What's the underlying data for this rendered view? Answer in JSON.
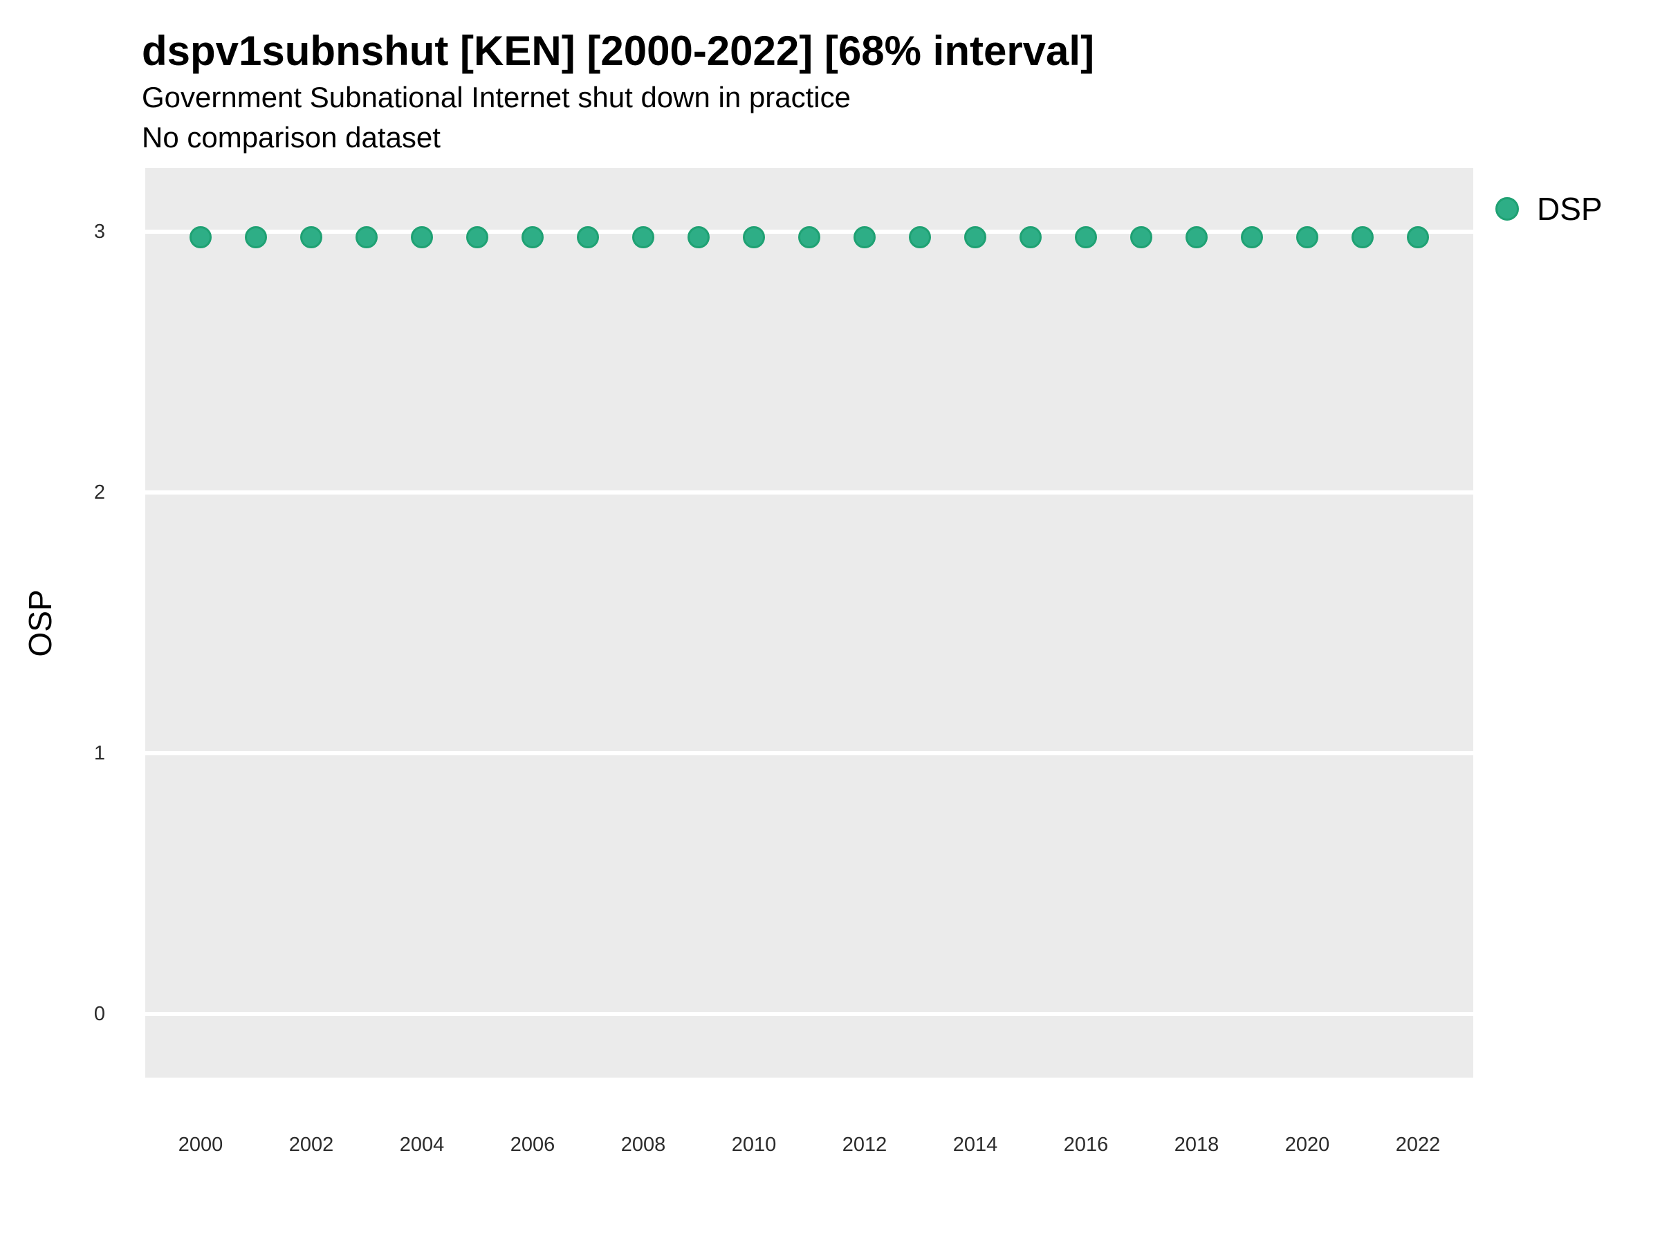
{
  "header": {
    "title": "dspv1subnshut [KEN] [2000-2022] [68% interval]",
    "subtitle": "Government Subnational Internet shut down in practice",
    "comparison_note": "No comparison dataset"
  },
  "legend": {
    "items": [
      {
        "label": "DSP",
        "color": "#2EAE86",
        "border_color": "#1FA173"
      }
    ]
  },
  "chart_data": {
    "type": "scatter",
    "title": "dspv1subnshut [KEN] [2000-2022] [68% interval]",
    "subtitle": "Government Subnational Internet shut down in practice",
    "note": "No comparison dataset",
    "xlabel": "",
    "ylabel": "OSP",
    "x": [
      2000,
      2001,
      2002,
      2003,
      2004,
      2005,
      2006,
      2007,
      2008,
      2009,
      2010,
      2011,
      2012,
      2013,
      2014,
      2015,
      2016,
      2017,
      2018,
      2019,
      2020,
      2021,
      2022
    ],
    "series": [
      {
        "name": "DSP",
        "values": [
          2.98,
          2.98,
          2.98,
          2.98,
          2.98,
          2.98,
          2.98,
          2.98,
          2.98,
          2.98,
          2.98,
          2.98,
          2.98,
          2.98,
          2.98,
          2.98,
          2.98,
          2.98,
          2.98,
          2.98,
          2.98,
          2.98,
          2.98
        ],
        "color": "#2EAE86",
        "border_color": "#1FA173"
      }
    ],
    "xlim": [
      1999,
      2023
    ],
    "ylim": [
      -0.24,
      3.24
    ],
    "y_ticks": [
      0,
      1,
      2,
      3
    ],
    "x_ticks": [
      2000,
      2002,
      2004,
      2006,
      2008,
      2010,
      2012,
      2014,
      2016,
      2018,
      2020,
      2022
    ],
    "grid": "major-horizontal-only",
    "gridline_color": "#FFFFFF",
    "panel_background": "#EBEBEB",
    "legend_position": "right-top"
  }
}
